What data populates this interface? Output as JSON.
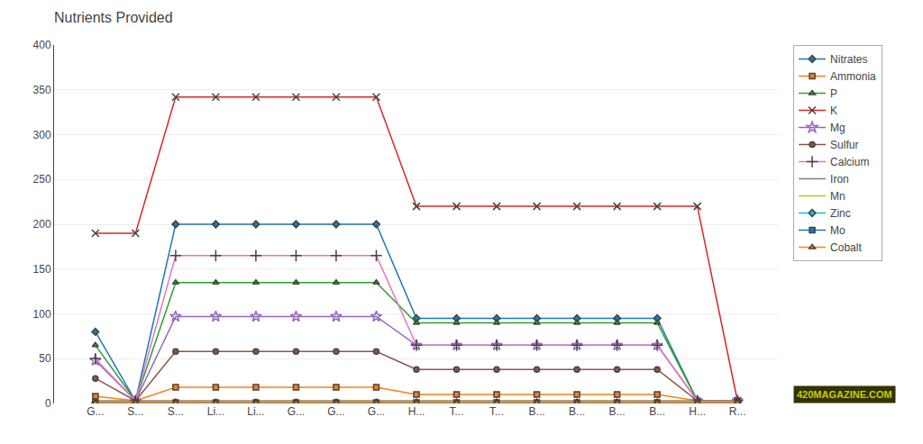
{
  "chart_data": {
    "type": "line",
    "title": "Nutrients Provided",
    "categories": [
      "G...",
      "S...",
      "S...",
      "Li...",
      "Li...",
      "G...",
      "G...",
      "G...",
      "H...",
      "T...",
      "T...",
      "B...",
      "B...",
      "B...",
      "B...",
      "H...",
      "R..."
    ],
    "series": [
      {
        "name": "Nitrates",
        "marker": "diamond",
        "values": [
          80,
          3,
          200,
          200,
          200,
          200,
          200,
          200,
          95,
          95,
          95,
          95,
          95,
          95,
          95,
          3,
          3
        ]
      },
      {
        "name": "Ammonia",
        "marker": "square",
        "values": [
          8,
          3,
          18,
          18,
          18,
          18,
          18,
          18,
          10,
          10,
          10,
          10,
          10,
          10,
          10,
          3,
          3
        ]
      },
      {
        "name": "P",
        "marker": "triangle-up",
        "values": [
          65,
          3,
          135,
          135,
          135,
          135,
          135,
          135,
          90,
          90,
          90,
          90,
          90,
          90,
          90,
          3,
          3
        ]
      },
      {
        "name": "K",
        "marker": "x",
        "values": [
          190,
          190,
          342,
          342,
          342,
          342,
          342,
          342,
          220,
          220,
          220,
          220,
          220,
          220,
          220,
          220,
          3
        ]
      },
      {
        "name": "Mg",
        "marker": "star",
        "values": [
          48,
          3,
          97,
          97,
          97,
          97,
          97,
          97,
          65,
          65,
          65,
          65,
          65,
          65,
          65,
          3,
          3
        ]
      },
      {
        "name": "Sulfur",
        "marker": "circle",
        "values": [
          28,
          3,
          58,
          58,
          58,
          58,
          58,
          58,
          38,
          38,
          38,
          38,
          38,
          38,
          38,
          3,
          3
        ]
      },
      {
        "name": "Calcium",
        "marker": "cross",
        "values": [
          50,
          3,
          165,
          165,
          165,
          165,
          165,
          165,
          65,
          65,
          65,
          65,
          65,
          65,
          65,
          3,
          3
        ]
      },
      {
        "name": "Iron",
        "marker": "none",
        "values": [
          3,
          3,
          3,
          3,
          3,
          3,
          3,
          3,
          3,
          3,
          3,
          3,
          3,
          3,
          3,
          3,
          3
        ]
      },
      {
        "name": "Mn",
        "marker": "none",
        "values": [
          2,
          1,
          2,
          2,
          2,
          2,
          2,
          2,
          2,
          2,
          2,
          2,
          2,
          2,
          2,
          2,
          2
        ]
      },
      {
        "name": "Zinc",
        "marker": "diamond",
        "values": [
          1,
          1,
          1,
          1,
          1,
          1,
          1,
          1,
          1,
          1,
          1,
          1,
          1,
          1,
          1,
          1,
          1
        ]
      },
      {
        "name": "Mo",
        "marker": "square",
        "values": [
          1,
          1,
          1,
          1,
          1,
          1,
          1,
          1,
          1,
          1,
          1,
          1,
          1,
          1,
          1,
          1,
          1
        ]
      },
      {
        "name": "Cobalt",
        "marker": "triangle-up",
        "values": [
          1,
          1,
          1,
          1,
          1,
          1,
          1,
          1,
          1,
          1,
          1,
          1,
          1,
          1,
          1,
          1,
          1
        ]
      }
    ],
    "ylim": [
      0,
      400
    ],
    "yticks": [
      0,
      50,
      100,
      150,
      200,
      250,
      300,
      350,
      400
    ],
    "grid": true,
    "legend": "upper right",
    "annotations": [
      "420MAGAZINE.COM"
    ]
  }
}
